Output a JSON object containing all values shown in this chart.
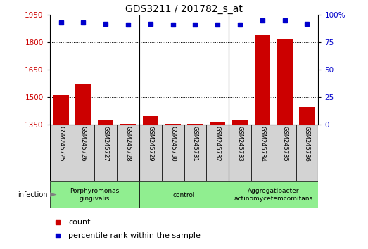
{
  "title": "GDS3211 / 201782_s_at",
  "samples": [
    "GSM245725",
    "GSM245726",
    "GSM245727",
    "GSM245728",
    "GSM245729",
    "GSM245730",
    "GSM245731",
    "GSM245732",
    "GSM245733",
    "GSM245734",
    "GSM245735",
    "GSM245736"
  ],
  "counts": [
    1510,
    1570,
    1375,
    1355,
    1395,
    1355,
    1355,
    1360,
    1375,
    1840,
    1815,
    1445
  ],
  "percentiles": [
    93,
    93,
    92,
    91,
    92,
    91,
    91,
    91,
    91,
    95,
    95,
    92
  ],
  "ylim_left": [
    1350,
    1950
  ],
  "ylim_right": [
    0,
    100
  ],
  "yticks_left": [
    1350,
    1500,
    1650,
    1800,
    1950
  ],
  "yticks_right": [
    0,
    25,
    50,
    75,
    100
  ],
  "ytick_labels_right": [
    "0",
    "25",
    "50",
    "75",
    "100%"
  ],
  "bar_color": "#cc0000",
  "dot_color": "#0000cc",
  "groups": [
    {
      "label": "Porphyromonas\ngingivalis",
      "start": 0,
      "end": 3,
      "color": "#90ee90"
    },
    {
      "label": "control",
      "start": 4,
      "end": 7,
      "color": "#90ee90"
    },
    {
      "label": "Aggregatibacter\nactinomycetemcomitans",
      "start": 8,
      "end": 11,
      "color": "#90ee90"
    }
  ],
  "group_dividers": [
    3.5,
    7.5
  ],
  "xlabel_color": "#cc0000",
  "ylabel_right_color": "#0000cc",
  "grid_color": "#000000",
  "background_color": "#ffffff",
  "tick_bg": "#d3d3d3",
  "gridlines_at": [
    1500,
    1650,
    1800
  ]
}
